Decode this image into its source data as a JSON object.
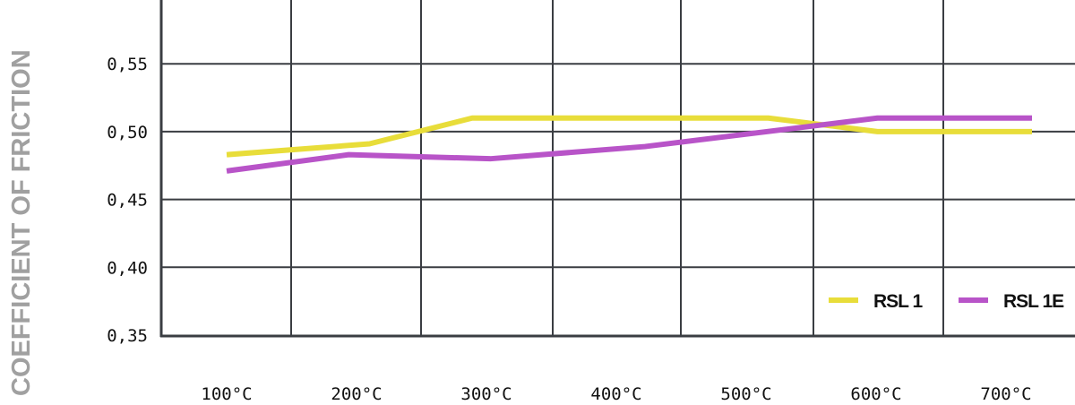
{
  "chart_data": {
    "type": "line",
    "ylabel": "COEFFICIENT OF FRICTION",
    "xlabel": "",
    "ylim": [
      0.35,
      0.59
    ],
    "xlim": [
      0,
      800
    ],
    "y_ticks": [
      "0,35",
      "0,40",
      "0,45",
      "0,50",
      "0,55"
    ],
    "y_tick_values": [
      0.35,
      0.4,
      0.45,
      0.5,
      0.55
    ],
    "categories": [
      "100°C",
      "200°C",
      "300°C",
      "400°C",
      "500°C",
      "600°C",
      "700°C"
    ],
    "grid": true,
    "legend_position": "bottom-right",
    "series": [
      {
        "name": "RSL 1",
        "color": "#e8dd3a",
        "x": [
          100,
          210,
          289,
          517,
          601,
          720
        ],
        "y": [
          0.483,
          0.491,
          0.51,
          0.51,
          0.5,
          0.5
        ]
      },
      {
        "name": "RSL 1E",
        "color": "#b854c8",
        "x": [
          100,
          194,
          303,
          422,
          601,
          720
        ],
        "y": [
          0.471,
          0.483,
          0.48,
          0.489,
          0.51,
          0.51
        ]
      }
    ]
  }
}
